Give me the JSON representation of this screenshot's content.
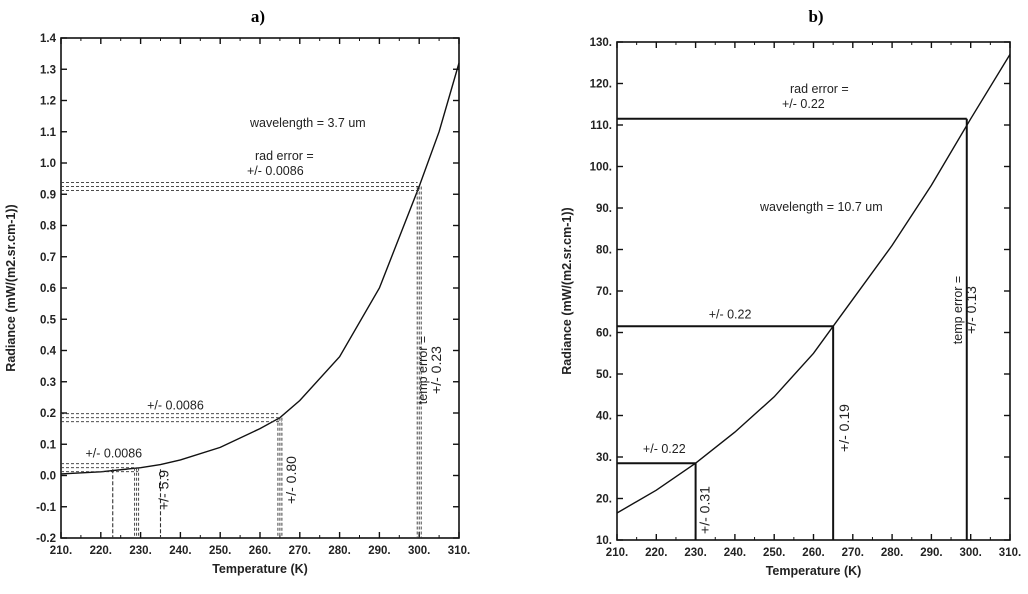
{
  "chart_data": [
    {
      "type": "line",
      "title": "a)",
      "xlabel": "Temperature (K)",
      "ylabel": "Radiance (mW/(m2.sr.cm-1))",
      "xlim": [
        210,
        310
      ],
      "ylim": [
        -0.2,
        1.4
      ],
      "x_ticks": [
        "210.",
        "220.",
        "230.",
        "240.",
        "250.",
        "260.",
        "270.",
        "280.",
        "290.",
        "300.",
        "310."
      ],
      "y_ticks": [
        "-0.2",
        "-0.1",
        "0.0",
        "0.1",
        "0.2",
        "0.3",
        "0.4",
        "0.5",
        "0.6",
        "0.7",
        "0.8",
        "0.9",
        "1.0",
        "1.1",
        "1.2",
        "1.3",
        "1.4"
      ],
      "grid": false,
      "series": [
        {
          "x": [
            210,
            220,
            230,
            235,
            240,
            250,
            260,
            265,
            270,
            280,
            290,
            300,
            305,
            310
          ],
          "y": [
            0.005,
            0.012,
            0.025,
            0.035,
            0.05,
            0.09,
            0.15,
            0.185,
            0.24,
            0.38,
            0.6,
            0.925,
            1.1,
            1.32
          ]
        }
      ],
      "annotations": {
        "wavelength": "wavelength =   3.7 um",
        "rad_error_title": "rad error =",
        "rad_error_value": "+/- 0.0086",
        "mid_error": "+/- 0.0086",
        "low_error": "+/- 0.0086",
        "temp_error_title": "temp error =",
        "temp_error_high": "+/- 0.23",
        "temp_error_mid": "+/- 0.80",
        "temp_error_low": "+/- 5.9"
      },
      "error_bands": [
        {
          "temp": 300,
          "radiance": 0.925,
          "rad_err": 0.0086,
          "temp_err": 0.23
        },
        {
          "temp": 265,
          "radiance": 0.185,
          "rad_err": 0.0086,
          "temp_err": 0.8
        },
        {
          "temp": 229,
          "radiance": 0.025,
          "rad_err": 0.0086,
          "temp_err": 5.9
        }
      ]
    },
    {
      "type": "line",
      "title": "b)",
      "xlabel": "Temperature (K)",
      "ylabel": "Radiance (mW/(m2.sr.cm-1))",
      "xlim": [
        210,
        310
      ],
      "ylim": [
        10,
        130
      ],
      "x_ticks": [
        "210.",
        "220.",
        "230.",
        "240.",
        "250.",
        "260.",
        "270.",
        "280.",
        "290.",
        "300.",
        "310."
      ],
      "y_ticks": [
        "10.",
        "20.",
        "30.",
        "40.",
        "50.",
        "60.",
        "70.",
        "80.",
        "90.",
        "100.",
        "110.",
        "120.",
        "130."
      ],
      "grid": false,
      "series": [
        {
          "x": [
            210,
            220,
            230,
            240,
            250,
            260,
            265,
            270,
            280,
            290,
            300,
            310
          ],
          "y": [
            16.5,
            22,
            28.5,
            36,
            44.5,
            55,
            61.5,
            68,
            81,
            95.5,
            111.5,
            127
          ]
        }
      ],
      "annotations": {
        "wavelength": "wavelength =  10.7 um",
        "rad_error_title": "rad error =",
        "rad_error_value": "+/- 0.22",
        "mid_error": "+/- 0.22",
        "low_error": "+/- 0.22",
        "temp_error_title": "temp error =",
        "temp_error_high": "+/- 0.13",
        "temp_error_mid": "+/- 0.19",
        "temp_error_low": "+/- 0.31"
      },
      "error_bands": [
        {
          "temp": 299,
          "radiance": 111.5,
          "rad_err": 0.22,
          "temp_err": 0.13
        },
        {
          "temp": 265,
          "radiance": 61.5,
          "rad_err": 0.22,
          "temp_err": 0.19
        },
        {
          "temp": 230,
          "radiance": 28.5,
          "rad_err": 0.22,
          "temp_err": 0.31
        }
      ]
    }
  ]
}
